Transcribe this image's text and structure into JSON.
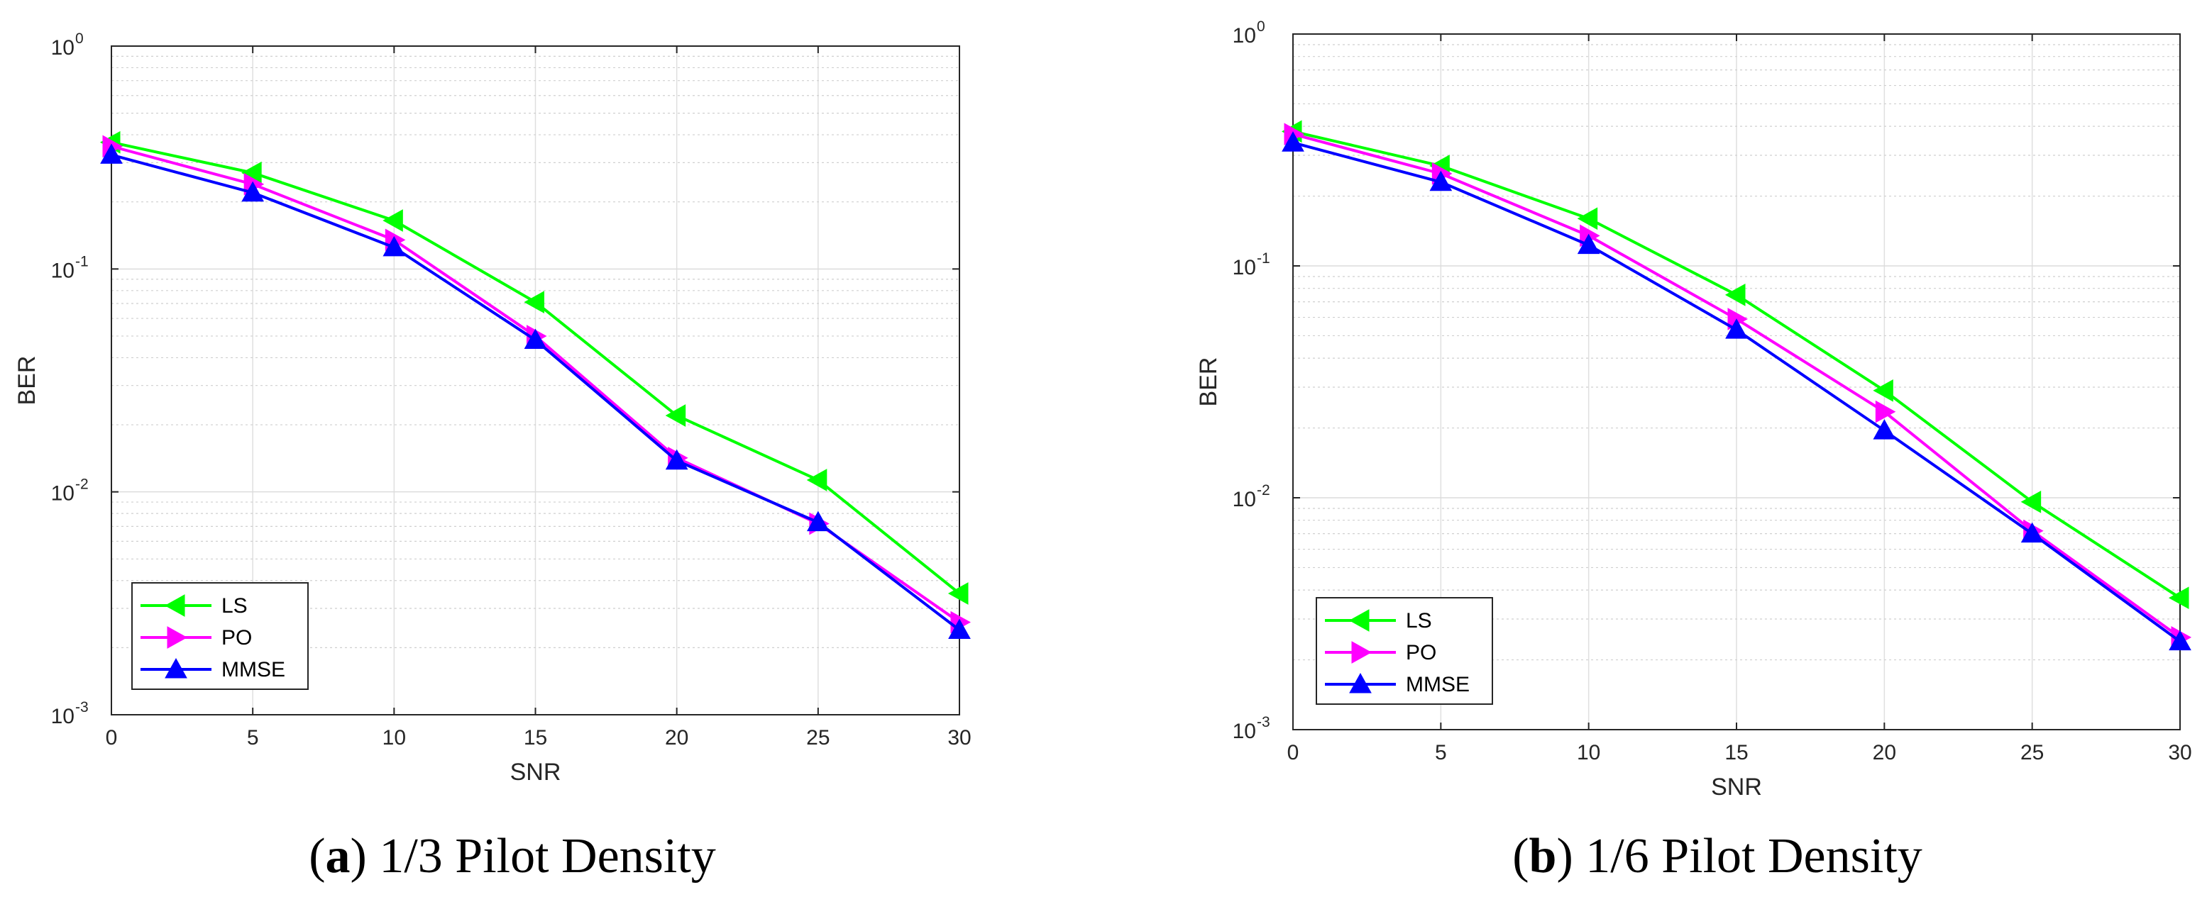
{
  "chart_data": [
    {
      "type": "line",
      "caption_label": "a",
      "caption_text": "1/3 Pilot Density",
      "xlabel": "SNR",
      "ylabel": "BER",
      "x": [
        0,
        5,
        10,
        15,
        20,
        25,
        30
      ],
      "xlim": [
        0,
        30
      ],
      "xticks": [
        "0",
        "5",
        "10",
        "15",
        "20",
        "25",
        "30"
      ],
      "ylim": [
        0.001,
        1
      ],
      "yscale": "log",
      "yticks": [
        {
          "base": "10",
          "exp": "-3"
        },
        {
          "base": "10",
          "exp": "-2"
        },
        {
          "base": "10",
          "exp": "-1"
        },
        {
          "base": "10",
          "exp": "0"
        }
      ],
      "grid": true,
      "legend_position": "bottom-left",
      "series": [
        {
          "name": "LS",
          "values": [
            0.37,
            0.27,
            0.165,
            0.071,
            0.022,
            0.0113,
            0.0035
          ]
        },
        {
          "name": "PO",
          "values": [
            0.355,
            0.24,
            0.135,
            0.05,
            0.0142,
            0.0072,
            0.0026
          ]
        },
        {
          "name": "MMSE",
          "values": [
            0.325,
            0.22,
            0.125,
            0.048,
            0.0138,
            0.0073,
            0.0024
          ]
        }
      ]
    },
    {
      "type": "line",
      "caption_label": "b",
      "caption_text": "1/6 Pilot Density",
      "xlabel": "SNR",
      "ylabel": "BER",
      "x": [
        0,
        5,
        10,
        15,
        20,
        25,
        30
      ],
      "xlim": [
        0,
        30
      ],
      "xticks": [
        "0",
        "5",
        "10",
        "15",
        "20",
        "25",
        "30"
      ],
      "ylim": [
        0.001,
        1
      ],
      "yscale": "log",
      "yticks": [
        {
          "base": "10",
          "exp": "-3"
        },
        {
          "base": "10",
          "exp": "-2"
        },
        {
          "base": "10",
          "exp": "-1"
        },
        {
          "base": "10",
          "exp": "0"
        }
      ],
      "grid": true,
      "legend_position": "bottom-left",
      "series": [
        {
          "name": "LS",
          "values": [
            0.38,
            0.27,
            0.16,
            0.075,
            0.029,
            0.0096,
            0.0037
          ]
        },
        {
          "name": "PO",
          "values": [
            0.37,
            0.25,
            0.135,
            0.059,
            0.0235,
            0.0072,
            0.0025
          ]
        },
        {
          "name": "MMSE",
          "values": [
            0.34,
            0.23,
            0.123,
            0.053,
            0.0195,
            0.007,
            0.0024
          ]
        }
      ]
    }
  ],
  "series_colors": {
    "LS": "#00ff00",
    "PO": "#ff00ff",
    "MMSE": "#0000ff"
  },
  "series_markers": {
    "LS": "triangle-left",
    "PO": "triangle-right",
    "MMSE": "triangle-up"
  }
}
